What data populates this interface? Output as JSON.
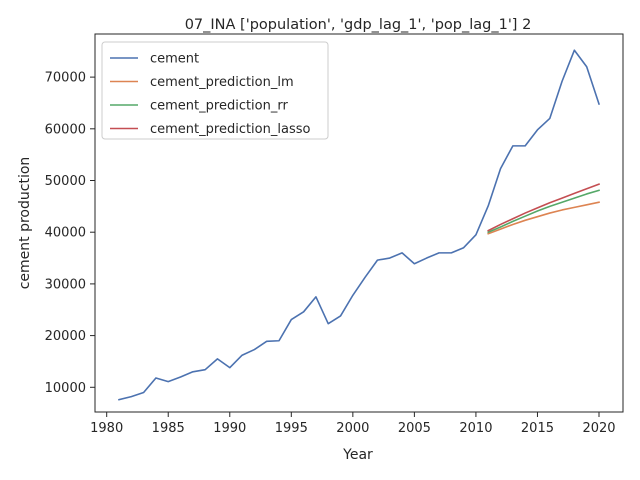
{
  "chart_data": {
    "type": "line",
    "title": "07_INA ['population', 'gdp_lag_1', 'pop_lag_1'] 2",
    "xlabel": "Year",
    "ylabel": "cement production",
    "xlim": [
      1979.05,
      2021.95
    ],
    "ylim": [
      5220,
      78340
    ],
    "xticks": [
      1980,
      1985,
      1990,
      1995,
      2000,
      2005,
      2010,
      2015,
      2020
    ],
    "yticks": [
      10000,
      20000,
      30000,
      40000,
      50000,
      60000,
      70000
    ],
    "grid": false,
    "legend": "upper left",
    "series": [
      {
        "name": "cement",
        "color": "#4c72b0",
        "x": [
          1981,
          1982,
          1983,
          1984,
          1985,
          1986,
          1987,
          1988,
          1989,
          1990,
          1991,
          1992,
          1993,
          1994,
          1995,
          1996,
          1997,
          1998,
          1999,
          2000,
          2001,
          2002,
          2003,
          2004,
          2005,
          2006,
          2007,
          2008,
          2009,
          2010,
          2011,
          2012,
          2013,
          2014,
          2015,
          2016,
          2017,
          2018,
          2019,
          2020
        ],
        "y": [
          7600,
          8200,
          9000,
          11800,
          11100,
          12000,
          13000,
          13400,
          15500,
          13800,
          16200,
          17300,
          18900,
          19000,
          23100,
          24600,
          27500,
          22300,
          23800,
          27800,
          31300,
          34600,
          35000,
          36000,
          33900,
          35000,
          36000,
          36000,
          37000,
          39500,
          45100,
          52300,
          56700,
          56700,
          59800,
          62000,
          69200,
          75200,
          72000,
          64800
        ]
      },
      {
        "name": "cement_prediction_lm",
        "color": "#dd8452",
        "x": [
          2011,
          2012,
          2013,
          2014,
          2015,
          2016,
          2017,
          2018,
          2019,
          2020
        ],
        "y": [
          39700,
          40600,
          41500,
          42300,
          43000,
          43700,
          44300,
          44800,
          45300,
          45800
        ]
      },
      {
        "name": "cement_prediction_rr",
        "color": "#55a868",
        "x": [
          2011,
          2012,
          2013,
          2014,
          2015,
          2016,
          2017,
          2018,
          2019,
          2020
        ],
        "y": [
          40000,
          41000,
          42100,
          43100,
          44100,
          45000,
          45800,
          46600,
          47400,
          48100
        ]
      },
      {
        "name": "cement_prediction_lasso",
        "color": "#c44e52",
        "x": [
          2011,
          2012,
          2013,
          2014,
          2015,
          2016,
          2017,
          2018,
          2019,
          2020
        ],
        "y": [
          40300,
          41500,
          42600,
          43700,
          44700,
          45700,
          46600,
          47500,
          48400,
          49300
        ]
      }
    ]
  }
}
